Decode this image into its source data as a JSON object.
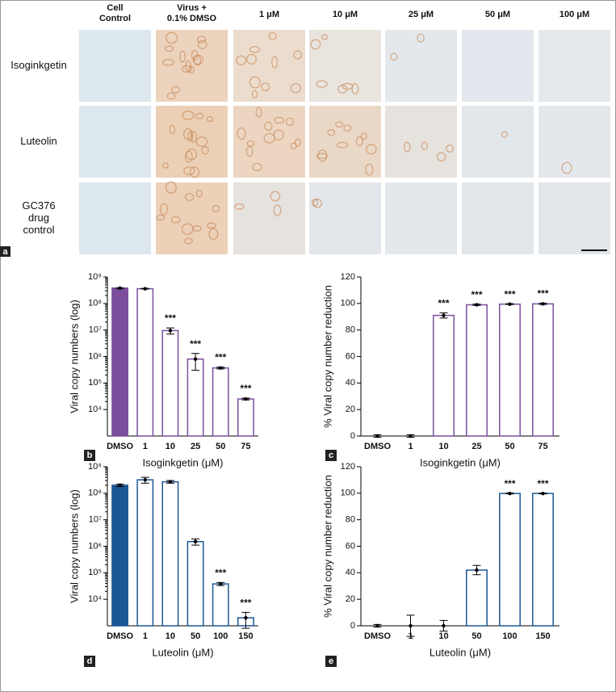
{
  "panel_a": {
    "label": "a",
    "columns": [
      [
        "Cell",
        "Control"
      ],
      [
        "Virus +",
        "0.1% DMSO"
      ],
      [
        "1 μM"
      ],
      [
        "10 μM"
      ],
      [
        "25 μM"
      ],
      [
        "50 μM"
      ],
      [
        "100 μM"
      ]
    ],
    "rows": [
      [
        "Isoginkgetin"
      ],
      [
        "Luteolin"
      ],
      [
        "GC376",
        "drug",
        "control"
      ]
    ]
  },
  "chart_data": [
    {
      "type": "bar",
      "panel": "b",
      "x_label": "Isoginkgetin (μM)",
      "y_label": "Viral copy numbers (log)",
      "categories": [
        "DMSO",
        "1",
        "10",
        "25",
        "50",
        "75"
      ],
      "values": [
        380000000,
        360000000,
        9500000,
        800000,
        370000,
        25000
      ],
      "errors": [
        10000000,
        10000000,
        2500000,
        500000,
        30000,
        2000
      ],
      "sig_labels": [
        null,
        null,
        "***",
        "***",
        "***",
        "***"
      ],
      "color": "#7b4f9e",
      "filled": [
        true,
        false,
        false,
        false,
        false,
        false
      ],
      "log_scale": true,
      "ylim": [
        1000,
        1000000000
      ],
      "yticks": [
        {
          "value": 1000000000,
          "label": "10⁹"
        },
        {
          "value": 100000000,
          "label": "10⁸"
        },
        {
          "value": 10000000,
          "label": "10⁷"
        },
        {
          "value": 1000000,
          "label": "10⁶"
        },
        {
          "value": 100000,
          "label": "10⁵"
        },
        {
          "value": 10000,
          "label": "10⁴"
        }
      ]
    },
    {
      "type": "bar",
      "panel": "c",
      "x_label": "Isoginkgetin (μM)",
      "y_label": "% Viral copy number reduction",
      "categories": [
        "DMSO",
        "1",
        "10",
        "25",
        "50",
        "75"
      ],
      "values": [
        0,
        0,
        91,
        99,
        99.5,
        99.7
      ],
      "errors": [
        1,
        1,
        2,
        0.5,
        0.3,
        0.5
      ],
      "sig_labels": [
        null,
        null,
        "***",
        "***",
        "***",
        "***"
      ],
      "color": "#7b4f9e",
      "filled": [
        false,
        false,
        false,
        false,
        false,
        false
      ],
      "log_scale": false,
      "ylim": [
        0,
        120
      ],
      "yticks": [
        0,
        20,
        40,
        60,
        80,
        100,
        120
      ]
    },
    {
      "type": "bar",
      "panel": "d",
      "x_label": "Luteolin (μM)",
      "y_label": "Viral copy numbers (log)",
      "categories": [
        "DMSO",
        "1",
        "10",
        "50",
        "100",
        "150"
      ],
      "values": [
        200000000,
        320000000,
        270000000,
        1500000,
        38000,
        2000
      ],
      "errors": [
        20000000,
        80000000,
        30000000,
        400000,
        5000,
        1200
      ],
      "sig_labels": [
        null,
        null,
        null,
        null,
        "***",
        "***"
      ],
      "color": "#1c5795",
      "filled": [
        true,
        false,
        false,
        false,
        false,
        false
      ],
      "log_scale": true,
      "ylim": [
        1000,
        1000000000
      ],
      "yticks": [
        {
          "value": 1000000000,
          "label": "10⁹"
        },
        {
          "value": 100000000,
          "label": "10⁸"
        },
        {
          "value": 10000000,
          "label": "10⁷"
        },
        {
          "value": 1000000,
          "label": "10⁶"
        },
        {
          "value": 100000,
          "label": "10⁵"
        },
        {
          "value": 10000,
          "label": "10⁴"
        }
      ]
    },
    {
      "type": "bar",
      "panel": "e",
      "x_label": "Luteolin (μM)",
      "y_label": "% Viral copy number reduction",
      "categories": [
        "DMSO",
        "1",
        "10",
        "50",
        "100",
        "150"
      ],
      "values": [
        0,
        0,
        0,
        42,
        99.8,
        99.8
      ],
      "errors": [
        1,
        8,
        4,
        3.5,
        0.3,
        0.3
      ],
      "sig_labels": [
        null,
        null,
        null,
        null,
        "***",
        "***"
      ],
      "color": "#1c5795",
      "filled": [
        false,
        false,
        false,
        false,
        false,
        false
      ],
      "log_scale": false,
      "ylim": [
        0,
        120
      ],
      "yticks": [
        0,
        20,
        40,
        60,
        80,
        100,
        120
      ]
    }
  ]
}
